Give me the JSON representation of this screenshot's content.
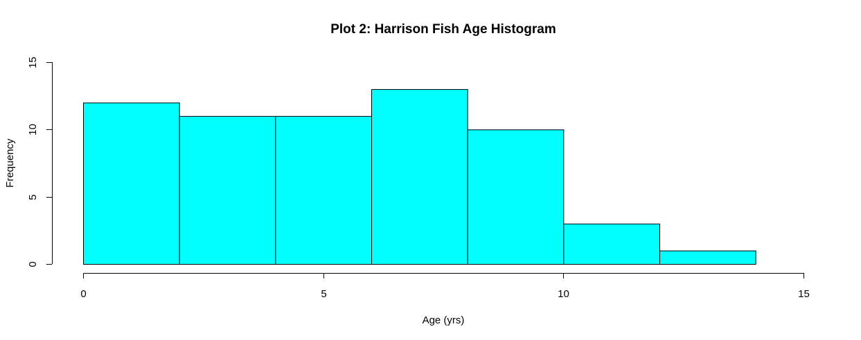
{
  "chart_data": {
    "type": "bar",
    "title": "Plot 2: Harrison Fish Age Histogram",
    "xlabel": "Age (yrs)",
    "ylabel": "Frequency",
    "bins": [
      {
        "start": 0,
        "end": 2,
        "count": 12
      },
      {
        "start": 2,
        "end": 4,
        "count": 11
      },
      {
        "start": 4,
        "end": 6,
        "count": 11
      },
      {
        "start": 6,
        "end": 8,
        "count": 13
      },
      {
        "start": 8,
        "end": 10,
        "count": 10
      },
      {
        "start": 10,
        "end": 12,
        "count": 3
      },
      {
        "start": 12,
        "end": 14,
        "count": 1
      }
    ],
    "xlim": [
      0,
      15
    ],
    "ylim": [
      0,
      15
    ],
    "xticks": [
      0,
      5,
      10,
      15
    ],
    "yticks": [
      0,
      5,
      10,
      15
    ],
    "bar_color": "#00ffff",
    "grid": false,
    "legend": "none"
  }
}
